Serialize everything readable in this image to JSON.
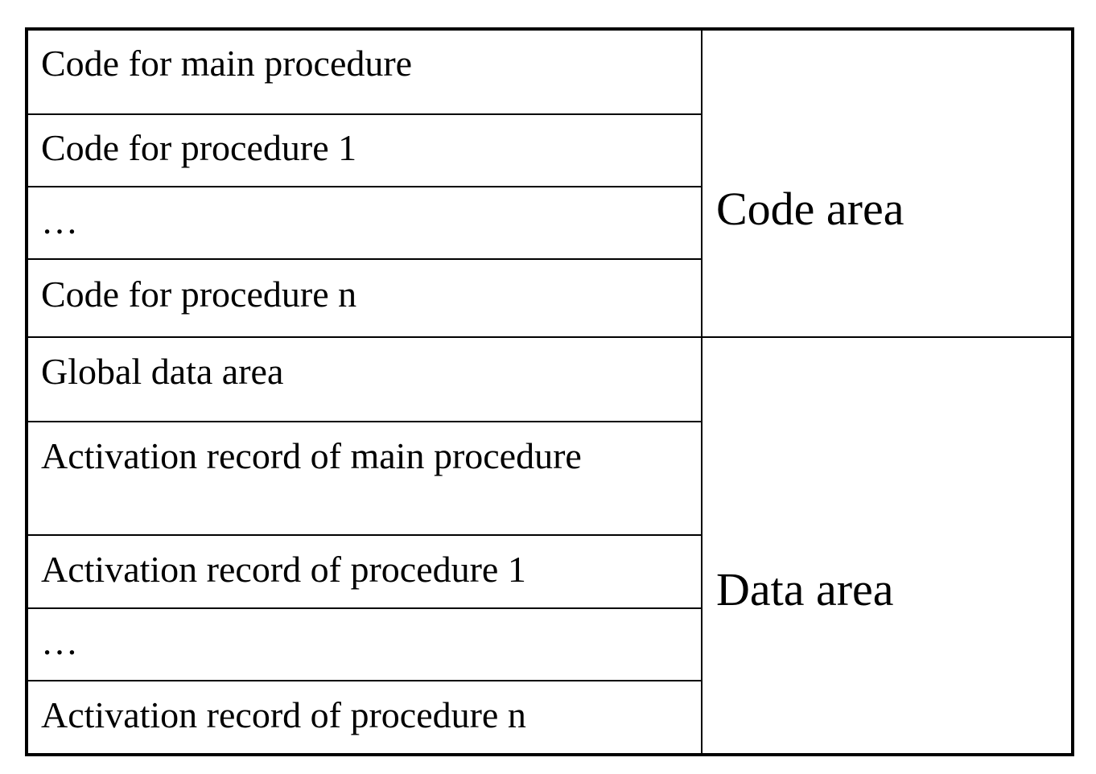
{
  "code_area": {
    "label": "Code area",
    "rows": [
      "Code for main procedure",
      "Code for procedure 1",
      "…",
      "Code for procedure n"
    ]
  },
  "data_area": {
    "label": "Data area",
    "rows": [
      "Global data area",
      "Activation record of main procedure",
      "Activation record of procedure 1",
      "…",
      "Activation record of procedure n"
    ]
  }
}
